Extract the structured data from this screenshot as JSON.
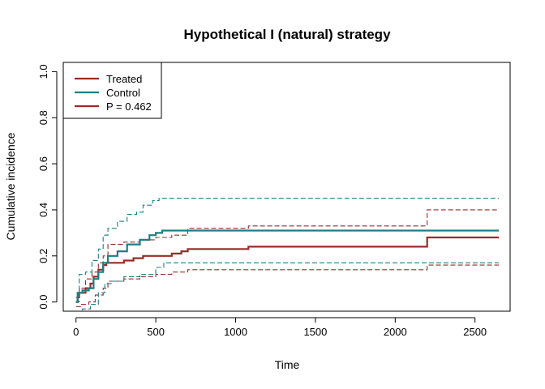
{
  "chart_data": {
    "type": "line",
    "title": "Hypothetical I (natural) strategy",
    "xlabel": "Time",
    "ylabel": "Cumulative incidence",
    "xlim": [
      -80,
      2720
    ],
    "ylim": [
      -0.04,
      1.04
    ],
    "x_ticks": [
      0,
      500,
      1000,
      1500,
      2000,
      2500
    ],
    "y_ticks": [
      0.0,
      0.2,
      0.4,
      0.6,
      0.8,
      1.0
    ],
    "x_tick_labels": [
      "0",
      "500",
      "1000",
      "1500",
      "2000",
      "2500"
    ],
    "y_tick_labels": [
      "0.0",
      "0.2",
      "0.4",
      "0.6",
      "0.8",
      "1.0"
    ],
    "grid": false,
    "legend_position": "top-left",
    "legend": [
      {
        "label": "Treated",
        "color": "#9b2a2a"
      },
      {
        "label": "Control",
        "color": "#1a7f86"
      },
      {
        "label": "P = 0.462",
        "color": "#9b2a2a"
      }
    ],
    "series": [
      {
        "name": "Treated",
        "color": "#9b2a2a",
        "style": "solid",
        "x": [
          0,
          10,
          20,
          60,
          90,
          110,
          140,
          170,
          190,
          230,
          300,
          360,
          420,
          500,
          600,
          660,
          700,
          1080,
          2200,
          2650
        ],
        "y": [
          0.0,
          0.02,
          0.04,
          0.06,
          0.08,
          0.11,
          0.14,
          0.16,
          0.17,
          0.17,
          0.18,
          0.19,
          0.2,
          0.2,
          0.21,
          0.22,
          0.23,
          0.24,
          0.28,
          0.28
        ]
      },
      {
        "name": "Treated lower",
        "color": "#9b2a2a",
        "style": "dashed",
        "x": [
          0,
          30,
          80,
          120,
          170,
          200,
          300,
          400,
          500,
          600,
          700,
          1080,
          2200,
          2650
        ],
        "y": [
          -0.02,
          -0.01,
          0.0,
          0.03,
          0.06,
          0.09,
          0.1,
          0.11,
          0.12,
          0.13,
          0.14,
          0.14,
          0.16,
          0.16
        ]
      },
      {
        "name": "Treated upper",
        "color": "#9b2a2a",
        "style": "dashed",
        "x": [
          0,
          20,
          60,
          100,
          140,
          170,
          200,
          300,
          400,
          500,
          600,
          700,
          1080,
          2200,
          2650
        ],
        "y": [
          0.02,
          0.06,
          0.1,
          0.13,
          0.17,
          0.2,
          0.25,
          0.26,
          0.27,
          0.28,
          0.29,
          0.32,
          0.33,
          0.4,
          0.4
        ]
      },
      {
        "name": "Control",
        "color": "#1a7f86",
        "style": "solid",
        "x": [
          0,
          10,
          40,
          80,
          110,
          140,
          170,
          200,
          260,
          320,
          400,
          460,
          500,
          540,
          2650
        ],
        "y": [
          0.0,
          0.04,
          0.05,
          0.06,
          0.1,
          0.13,
          0.17,
          0.2,
          0.22,
          0.25,
          0.27,
          0.29,
          0.3,
          0.31,
          0.31
        ]
      },
      {
        "name": "Control lower",
        "color": "#1a7f86",
        "style": "dashed",
        "x": [
          0,
          40,
          90,
          140,
          180,
          220,
          300,
          400,
          500,
          550,
          2650
        ],
        "y": [
          -0.04,
          -0.03,
          -0.01,
          0.04,
          0.08,
          0.09,
          0.11,
          0.12,
          0.15,
          0.17,
          0.17
        ]
      },
      {
        "name": "Control upper",
        "color": "#1a7f86",
        "style": "dashed",
        "x": [
          0,
          20,
          60,
          100,
          140,
          170,
          200,
          260,
          320,
          380,
          420,
          480,
          520,
          2650
        ],
        "y": [
          0.0,
          0.12,
          0.13,
          0.18,
          0.23,
          0.29,
          0.32,
          0.35,
          0.38,
          0.39,
          0.42,
          0.44,
          0.45,
          0.45
        ]
      }
    ]
  }
}
